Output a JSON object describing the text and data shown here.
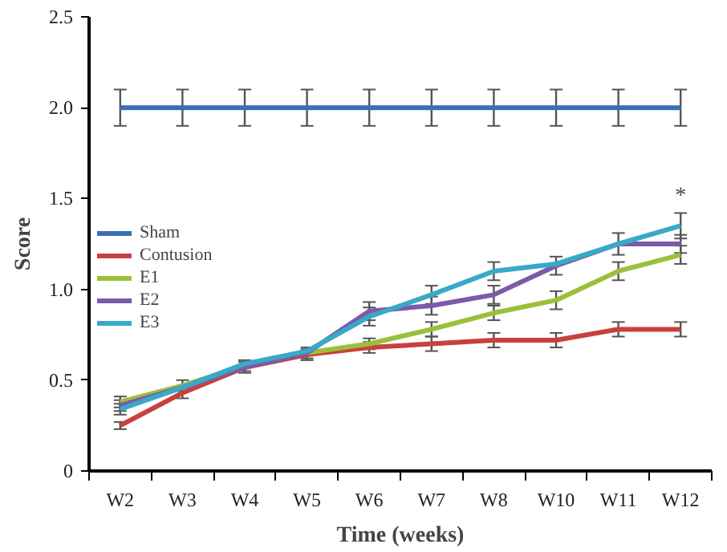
{
  "chart_data": {
    "type": "line",
    "xlabel": "Time (weeks)",
    "ylabel": "Score",
    "categories": [
      "W2",
      "W3",
      "W4",
      "W5",
      "W6",
      "W7",
      "W8",
      "W10",
      "W11",
      "W12"
    ],
    "ylim": [
      0,
      2.5
    ],
    "yticks": [
      0,
      0.5,
      {
        "value": 1,
        "label": "1.0"
      },
      1.5,
      {
        "value": 2,
        "label": "2.0"
      },
      2.5
    ],
    "series": [
      {
        "name": "Sham",
        "color": "#3a6fb8",
        "values": [
          2.0,
          2.0,
          2.0,
          2.0,
          2.0,
          2.0,
          2.0,
          2.0,
          2.0,
          2.0
        ],
        "errors": [
          0.1,
          0.1,
          0.1,
          0.1,
          0.1,
          0.1,
          0.1,
          0.1,
          0.1,
          0.1
        ]
      },
      {
        "name": "Contusion",
        "color": "#c8413e",
        "values": [
          0.25,
          0.43,
          0.57,
          0.64,
          0.68,
          0.7,
          0.72,
          0.72,
          0.78,
          0.78
        ],
        "errors": [
          0.02,
          0.03,
          0.03,
          0.03,
          0.03,
          0.04,
          0.04,
          0.04,
          0.04,
          0.04
        ]
      },
      {
        "name": "E1",
        "color": "#9cbf3a",
        "values": [
          0.38,
          0.47,
          0.58,
          0.65,
          0.7,
          0.78,
          0.87,
          0.94,
          1.1,
          1.19
        ],
        "errors": [
          0.03,
          0.03,
          0.03,
          0.03,
          0.03,
          0.04,
          0.04,
          0.05,
          0.05,
          0.05
        ]
      },
      {
        "name": "E2",
        "color": "#7d5aa8",
        "values": [
          0.36,
          0.46,
          0.57,
          0.65,
          0.88,
          0.91,
          0.97,
          1.13,
          1.25,
          1.25
        ],
        "errors": [
          0.03,
          null,
          null,
          null,
          0.05,
          0.05,
          0.05,
          0.05,
          null,
          0.05
        ]
      },
      {
        "name": "E3",
        "color": "#38aac8",
        "values": [
          0.34,
          0.46,
          0.59,
          0.66,
          0.85,
          0.97,
          1.1,
          1.14,
          1.25,
          1.35
        ],
        "errors": [
          0.03,
          null,
          null,
          null,
          0.05,
          0.05,
          0.05,
          null,
          0.06,
          0.07
        ]
      }
    ],
    "annotations": [
      "*"
    ],
    "legend": "left",
    "grid": false,
    "marker": "none",
    "line_style": "solid"
  }
}
